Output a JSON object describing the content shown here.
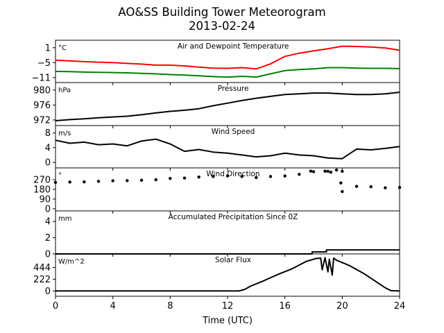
{
  "header": {
    "title_line1": "AO&SS Building Tower Meteorogram",
    "title_line2": "2013-02-24"
  },
  "colors": {
    "temperature": "#ff0000",
    "dewpoint": "#008000",
    "default": "#000000"
  },
  "chart_data": [
    {
      "type": "line",
      "title": "Air and Dewpoint Temperature",
      "unit": "°C",
      "ylim": [
        -13,
        4
      ],
      "yticks": [
        1,
        -5,
        -11
      ],
      "ytick_labels": [
        "1",
        "−5",
        "−11"
      ],
      "x": [
        0,
        1,
        2,
        3,
        4,
        5,
        6,
        7,
        8,
        9,
        10,
        11,
        12,
        13,
        14,
        15,
        16,
        17,
        18,
        19,
        20,
        21,
        22,
        23,
        24
      ],
      "series": [
        {
          "key": "temperature",
          "color": "#ff0000",
          "values": [
            -4.0,
            -4.3,
            -4.6,
            -4.8,
            -5.0,
            -5.3,
            -5.6,
            -6.0,
            -6.0,
            -6.3,
            -6.8,
            -7.2,
            -7.3,
            -7.0,
            -7.5,
            -5.5,
            -2.5,
            -1.2,
            -0.3,
            0.6,
            1.6,
            1.5,
            1.3,
            0.9,
            0.0
          ]
        },
        {
          "key": "dewpoint",
          "color": "#008000",
          "values": [
            -8.5,
            -8.6,
            -8.8,
            -8.9,
            -9.0,
            -9.1,
            -9.3,
            -9.5,
            -9.8,
            -10.0,
            -10.3,
            -10.6,
            -10.8,
            -10.5,
            -10.8,
            -9.5,
            -8.2,
            -7.8,
            -7.5,
            -7.0,
            -7.0,
            -7.2,
            -7.3,
            -7.3,
            -7.4
          ]
        }
      ]
    },
    {
      "type": "line",
      "title": "Pressure",
      "unit": "hPa",
      "ylim": [
        970.5,
        982
      ],
      "yticks": [
        980,
        976,
        972
      ],
      "ytick_labels": [
        "980",
        "976",
        "972"
      ],
      "x": [
        0,
        1,
        2,
        3,
        4,
        5,
        6,
        7,
        8,
        9,
        10,
        11,
        12,
        13,
        14,
        15,
        16,
        17,
        18,
        19,
        20,
        21,
        22,
        23,
        24
      ],
      "series": [
        {
          "values": [
            971.8,
            972.1,
            972.3,
            972.6,
            972.8,
            973.0,
            973.4,
            973.9,
            974.3,
            974.6,
            975.0,
            975.8,
            976.5,
            977.2,
            977.8,
            978.3,
            978.8,
            979.0,
            979.2,
            979.2,
            979.0,
            978.8,
            978.8,
            979.0,
            979.4
          ]
        }
      ]
    },
    {
      "type": "line",
      "title": "Wind Speed",
      "unit": "m/s",
      "ylim": [
        -1.5,
        10
      ],
      "yticks": [
        8,
        4,
        0
      ],
      "ytick_labels": [
        "8",
        "4",
        "0"
      ],
      "x": [
        0,
        1,
        2,
        3,
        4,
        5,
        6,
        7,
        8,
        9,
        10,
        11,
        12,
        13,
        14,
        15,
        16,
        17,
        18,
        19,
        20,
        21,
        22,
        23,
        24
      ],
      "series": [
        {
          "values": [
            6.0,
            5.2,
            5.5,
            4.8,
            5.0,
            4.5,
            5.8,
            6.3,
            5.0,
            3.0,
            3.5,
            2.8,
            2.5,
            2.0,
            1.5,
            1.8,
            2.5,
            2.0,
            1.8,
            1.2,
            1.0,
            3.6,
            3.4,
            3.8,
            4.3
          ]
        }
      ]
    },
    {
      "type": "scatter",
      "title": "Wind Direction",
      "unit": "°",
      "ylim": [
        -20,
        380
      ],
      "yticks": [
        270,
        180,
        90,
        0
      ],
      "ytick_labels": [
        "270",
        "180",
        "90",
        "0"
      ],
      "x": [
        0,
        1,
        2,
        3,
        4,
        5,
        6,
        7,
        8,
        9,
        10,
        11,
        12,
        13,
        14,
        15,
        16,
        17,
        18,
        19,
        20,
        21,
        22,
        23,
        24,
        17.8,
        18.8,
        19.2,
        19.6,
        19.9,
        20.0
      ],
      "series": [
        {
          "values": [
            245,
            248,
            250,
            255,
            260,
            262,
            265,
            270,
            282,
            285,
            295,
            300,
            305,
            300,
            290,
            300,
            305,
            320,
            345,
            348,
            348,
            208,
            205,
            195,
            198,
            350,
            350,
            340,
            360,
            240,
            160
          ]
        }
      ]
    },
    {
      "type": "line",
      "title": "Accumulated Precipitation Since 0Z",
      "unit": "mm",
      "ylim": [
        0,
        5.3
      ],
      "yticks": [
        4,
        2,
        0
      ],
      "ytick_labels": [
        "4",
        "2",
        "0"
      ],
      "x": [
        0,
        17.9,
        17.9,
        18.9,
        18.9,
        24
      ],
      "series": [
        {
          "values": [
            0,
            0,
            0.25,
            0.25,
            0.5,
            0.5
          ]
        }
      ]
    },
    {
      "type": "line",
      "title": "Solar Flux",
      "unit": "W/m^2",
      "ylim": [
        -100,
        700
      ],
      "yticks": [
        444,
        222,
        0
      ],
      "ytick_labels": [
        "444",
        "222",
        "0"
      ],
      "x": [
        0,
        12.8,
        13.2,
        13.6,
        14.5,
        15.5,
        16.5,
        17.5,
        18.2,
        18.5,
        18.6,
        18.8,
        19.0,
        19.1,
        19.3,
        19.4,
        19.6,
        20.5,
        21.5,
        22.5,
        23.0,
        23.4,
        24
      ],
      "series": [
        {
          "values": [
            0,
            0,
            30,
            90,
            190,
            310,
            420,
            560,
            615,
            620,
            400,
            630,
            360,
            600,
            300,
            620,
            580,
            480,
            330,
            150,
            60,
            5,
            0
          ]
        }
      ]
    }
  ],
  "x_axis": {
    "label": "Time (UTC)",
    "xlim": [
      0,
      24
    ],
    "ticks": [
      0,
      4,
      8,
      12,
      16,
      20,
      24
    ],
    "tick_labels": [
      "0",
      "4",
      "8",
      "12",
      "16",
      "20",
      "24"
    ]
  }
}
